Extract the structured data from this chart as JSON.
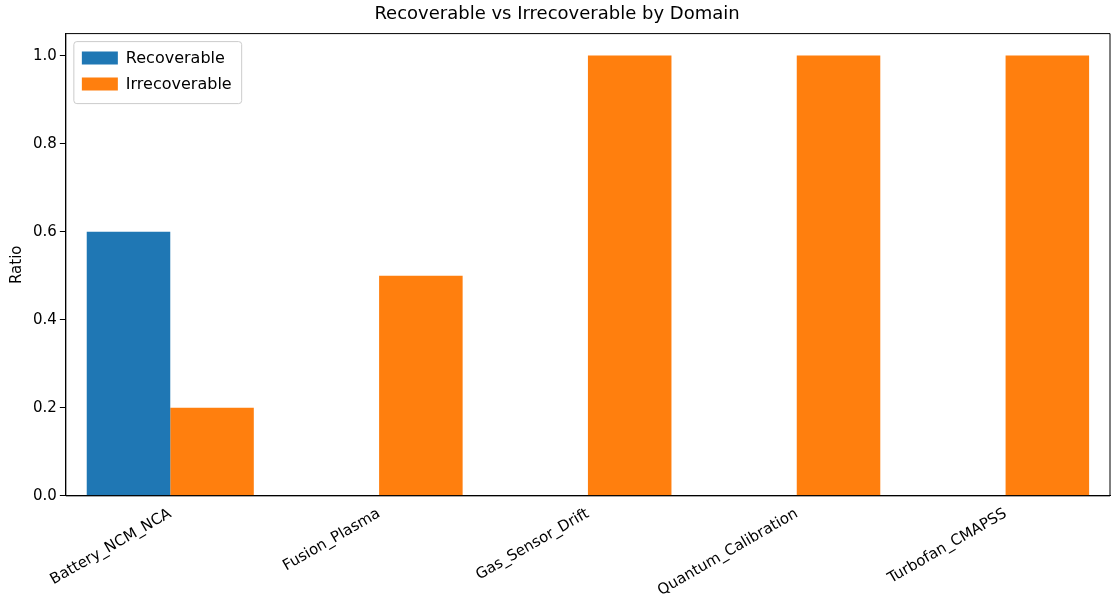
{
  "chart_data": {
    "type": "bar",
    "title": "Recoverable vs Irrecoverable by Domain",
    "ylabel": "Ratio",
    "categories": [
      "Battery_NCM_NCA",
      "Fusion_Plasma",
      "Gas_Sensor_Drift",
      "Quantum_Calibration",
      "Turbofan_CMAPSS"
    ],
    "series": [
      {
        "name": "Recoverable",
        "color": "#1f77b4",
        "values": [
          0.6,
          0,
          0,
          0,
          0
        ]
      },
      {
        "name": "Irrecoverable",
        "color": "#ff7f0e",
        "values": [
          0.2,
          0.5,
          1.0,
          1.0,
          1.0
        ]
      }
    ],
    "ylim": [
      0,
      1.05
    ],
    "yticks": [
      {
        "value": 0,
        "label": "0.0"
      },
      {
        "value": 0.2,
        "label": "0.2"
      },
      {
        "value": 0.4,
        "label": "0.4"
      },
      {
        "value": 0.6,
        "label": "0.6"
      },
      {
        "value": 0.8,
        "label": "0.8"
      },
      {
        "value": 1,
        "label": "1.0"
      }
    ],
    "grid": false,
    "legend": "top left"
  }
}
